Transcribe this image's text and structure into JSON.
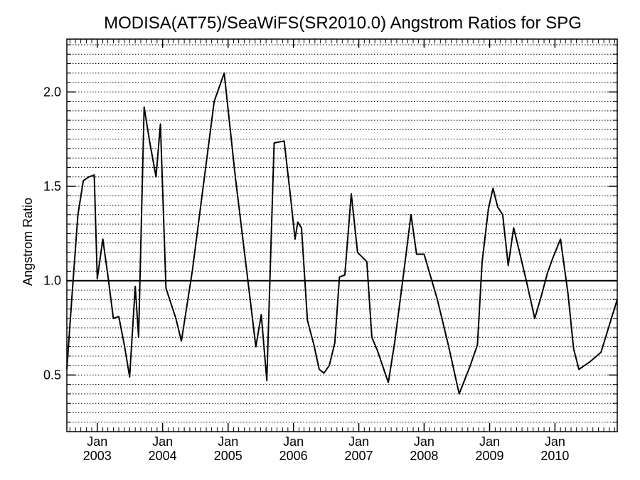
{
  "chart_data": {
    "type": "line",
    "title": "MODISA(AT75)/SeaWiFS(SR2010.0)  Angstrom Ratios for SPG",
    "xlabel": "",
    "ylabel": "Angstrom Ratio",
    "ylim": [
      0.2,
      2.28
    ],
    "xlim": [
      "2002-07-15",
      "2010-12-15"
    ],
    "y_ticks": [
      "0.5",
      "1.0",
      "1.5",
      "2.0"
    ],
    "y_tick_values": [
      0.5,
      1.0,
      1.5,
      2.0
    ],
    "x_ticks": [
      {
        "month": "Jan",
        "year": "2003",
        "date": "2003-01-01"
      },
      {
        "month": "Jan",
        "year": "2004",
        "date": "2004-01-01"
      },
      {
        "month": "Jan",
        "year": "2005",
        "date": "2005-01-01"
      },
      {
        "month": "Jan",
        "year": "2006",
        "date": "2006-01-01"
      },
      {
        "month": "Jan",
        "year": "2007",
        "date": "2007-01-01"
      },
      {
        "month": "Jan",
        "year": "2008",
        "date": "2008-01-01"
      },
      {
        "month": "Jan",
        "year": "2009",
        "date": "2009-01-01"
      },
      {
        "month": "Jan",
        "year": "2010",
        "date": "2010-01-01"
      }
    ],
    "reference_line": 1.0,
    "grid": "horizontal dotted",
    "series": [
      {
        "color": "#000000",
        "points": [
          [
            "2002-07-15",
            0.53
          ],
          [
            "2002-08-15",
            0.95
          ],
          [
            "2002-09-15",
            1.35
          ],
          [
            "2002-10-15",
            1.53
          ],
          [
            "2002-11-15",
            1.55
          ],
          [
            "2002-12-15",
            1.56
          ],
          [
            "2003-01-01",
            1.01
          ],
          [
            "2003-02-01",
            1.22
          ],
          [
            "2003-03-01",
            1.03
          ],
          [
            "2003-04-01",
            0.8
          ],
          [
            "2003-05-01",
            0.81
          ],
          [
            "2003-06-01",
            0.66
          ],
          [
            "2003-07-01",
            0.49
          ],
          [
            "2003-08-01",
            0.97
          ],
          [
            "2003-08-20",
            0.7
          ],
          [
            "2003-09-20",
            1.92
          ],
          [
            "2003-10-20",
            1.74
          ],
          [
            "2003-11-25",
            1.55
          ],
          [
            "2003-12-20",
            1.83
          ],
          [
            "2004-01-20",
            0.96
          ],
          [
            "2004-03-15",
            0.8
          ],
          [
            "2004-04-15",
            0.68
          ],
          [
            "2004-06-15",
            1.05
          ],
          [
            "2004-08-15",
            1.5
          ],
          [
            "2004-10-15",
            1.95
          ],
          [
            "2004-12-10",
            2.1
          ],
          [
            "2005-02-10",
            1.55
          ],
          [
            "2005-04-15",
            1.05
          ],
          [
            "2005-06-05",
            0.65
          ],
          [
            "2005-07-05",
            0.82
          ],
          [
            "2005-08-05",
            0.47
          ],
          [
            "2005-09-15",
            1.73
          ],
          [
            "2005-11-10",
            1.74
          ],
          [
            "2005-12-15",
            1.45
          ],
          [
            "2006-01-10",
            1.22
          ],
          [
            "2006-01-25",
            1.31
          ],
          [
            "2006-02-15",
            1.28
          ],
          [
            "2006-03-20",
            0.79
          ],
          [
            "2006-04-25",
            0.66
          ],
          [
            "2006-05-25",
            0.53
          ],
          [
            "2006-06-20",
            0.51
          ],
          [
            "2006-07-20",
            0.55
          ],
          [
            "2006-08-20",
            0.67
          ],
          [
            "2006-09-15",
            1.02
          ],
          [
            "2006-10-15",
            1.03
          ],
          [
            "2006-11-20",
            1.46
          ],
          [
            "2006-12-25",
            1.15
          ],
          [
            "2007-02-15",
            1.1
          ],
          [
            "2007-03-15",
            0.7
          ],
          [
            "2007-04-15",
            0.63
          ],
          [
            "2007-06-15",
            0.46
          ],
          [
            "2007-07-20",
            0.67
          ],
          [
            "2007-09-10",
            1.05
          ],
          [
            "2007-10-20",
            1.35
          ],
          [
            "2007-11-20",
            1.14
          ],
          [
            "2008-01-01",
            1.14
          ],
          [
            "2008-03-15",
            0.9
          ],
          [
            "2008-05-15",
            0.66
          ],
          [
            "2008-07-15",
            0.4
          ],
          [
            "2008-09-15",
            0.55
          ],
          [
            "2008-10-25",
            0.66
          ],
          [
            "2008-11-20",
            1.1
          ],
          [
            "2008-12-25",
            1.38
          ],
          [
            "2009-01-20",
            1.49
          ],
          [
            "2009-02-15",
            1.39
          ],
          [
            "2009-03-15",
            1.35
          ],
          [
            "2009-04-15",
            1.08
          ],
          [
            "2009-05-15",
            1.28
          ],
          [
            "2009-06-20",
            1.14
          ],
          [
            "2009-07-25",
            1.0
          ],
          [
            "2009-09-10",
            0.8
          ],
          [
            "2009-10-20",
            0.93
          ],
          [
            "2009-11-20",
            1.04
          ],
          [
            "2009-12-20",
            1.12
          ],
          [
            "2010-02-01",
            1.22
          ],
          [
            "2010-03-15",
            0.93
          ],
          [
            "2010-04-15",
            0.64
          ],
          [
            "2010-05-15",
            0.53
          ],
          [
            "2010-07-15",
            0.57
          ],
          [
            "2010-09-15",
            0.62
          ],
          [
            "2010-12-15",
            0.9
          ]
        ]
      }
    ]
  }
}
